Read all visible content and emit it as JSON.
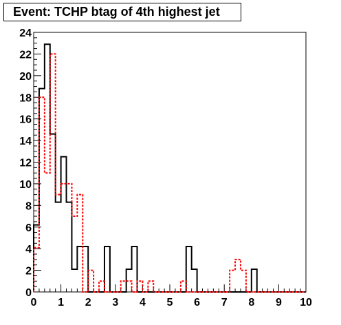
{
  "chart_data": {
    "type": "histogram",
    "title": "Event: TCHP btag of 4th highest jet",
    "xlabel": "",
    "ylabel": "",
    "xlim": [
      0,
      10
    ],
    "ylim": [
      0,
      24
    ],
    "bin_width": 0.2,
    "x_ticks": [
      0,
      1,
      2,
      3,
      4,
      5,
      6,
      7,
      8,
      9,
      10
    ],
    "y_ticks": [
      0,
      2,
      4,
      6,
      8,
      10,
      12,
      14,
      16,
      18,
      20,
      22,
      24
    ],
    "grid": false,
    "legend": "none",
    "series": [
      {
        "color": "#000000",
        "style": "solid",
        "values": [
          6.2,
          18.8,
          22.9,
          14.6,
          8.3,
          12.5,
          8.3,
          2.1,
          4.2,
          4.2,
          0,
          0,
          0,
          0,
          0,
          0,
          0,
          0,
          4.2,
          0,
          0,
          0,
          0,
          0,
          0,
          0,
          0,
          0,
          0,
          2.1,
          0,
          0,
          0,
          0,
          0,
          0,
          0,
          0,
          0,
          0,
          0,
          0,
          0,
          0,
          0,
          0,
          0,
          0,
          0,
          0
        ],
        "overrides": [
          {
            "x0": 2.4,
            "x1": 2.6,
            "value": 0
          },
          {
            "x0": 2.6,
            "x1": 2.8,
            "value": 4.2
          },
          {
            "x0": 3.4,
            "x1": 3.6,
            "value": 2.1
          },
          {
            "x0": 5.6,
            "x1": 5.8,
            "value": 4.2
          },
          {
            "x0": 8.0,
            "x1": 8.2,
            "value": 2.1
          }
        ]
      },
      {
        "color": "#ff0000",
        "style": "dotted",
        "values": [
          4.1,
          18.0,
          11.0,
          22.0,
          9.0,
          10.0,
          10.0,
          7.0,
          9.0,
          0,
          2.0,
          0,
          1.0,
          0,
          0,
          0,
          1.0,
          1.0,
          0,
          1.0,
          0,
          1.0,
          0,
          0,
          0,
          0,
          0,
          1.0,
          0,
          0,
          0,
          0,
          0,
          0,
          0,
          0,
          2.0,
          3.0,
          2.0,
          0,
          0,
          0,
          0,
          0,
          0,
          0,
          0,
          0,
          0,
          0
        ]
      }
    ]
  }
}
